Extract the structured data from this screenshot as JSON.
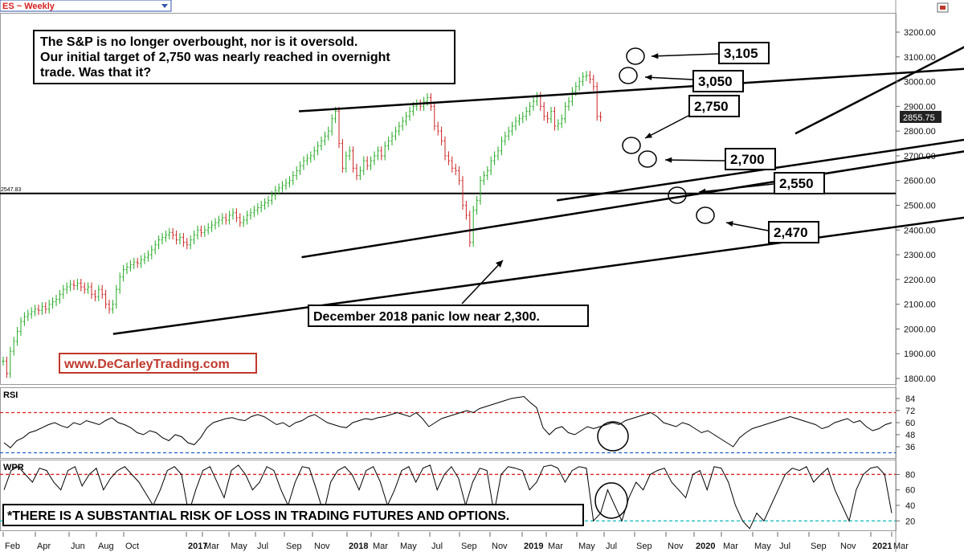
{
  "header": {
    "symbol_title": "ES ~ Weekly",
    "symbol_dropdown_icon": "chevron-down-icon",
    "window_control_icon": "window-restore-icon"
  },
  "annotations": {
    "commentary": [
      "The S&P is no longer overbought, nor is it oversold.",
      " Our initial target of 2,750 was nearly reached  in overnight",
      "trade. Was that it?"
    ],
    "website": "www.DeCarleyTrading.com",
    "panic_low": "December 2018 panic low near 2,300.",
    "disclaimer": "*THERE IS A SUBSTANTIAL RISK OF LOSS IN TRADING FUTURES AND OPTIONS.",
    "level_labels": [
      "3,105",
      "3,050",
      "2,750",
      "2,700",
      "2,550",
      "2,470"
    ]
  },
  "chart_data": [
    {
      "type": "line",
      "panel": "price",
      "y_ticks": [
        "3200.00",
        "3100.00",
        "3000.00",
        "2900.00",
        "2800.00",
        "2700.00",
        "2600.00",
        "2500.00",
        "2400.00",
        "2300.00",
        "2200.00",
        "2100.00",
        "2000.00",
        "1900.00",
        "1800.00"
      ],
      "ylim": [
        1780,
        3250
      ],
      "last_price": "2855.75",
      "horizontal_line": {
        "value": 2547.83,
        "label": "2547.83"
      },
      "x_ticks": [
        "Feb",
        "Apr",
        "Jun",
        "Aug",
        "Oct",
        "2017",
        "Mar",
        "May",
        "Jul",
        "Sep",
        "Nov",
        "2018",
        "Mar",
        "May",
        "Jul",
        "Sep",
        "Nov",
        "2019",
        "Mar",
        "May",
        "Jul",
        "Sep",
        "Nov",
        "2020",
        "Mar",
        "May",
        "Jul",
        "Sep",
        "Nov",
        "2021",
        "Mar"
      ],
      "closes": [
        1870,
        1820,
        1910,
        1950,
        1990,
        2030,
        2050,
        2060,
        2070,
        2080,
        2075,
        2090,
        2080,
        2100,
        2110,
        2120,
        2140,
        2160,
        2170,
        2180,
        2175,
        2185,
        2170,
        2160,
        2170,
        2140,
        2130,
        2160,
        2140,
        2100,
        2080,
        2100,
        2160,
        2210,
        2240,
        2250,
        2260,
        2270,
        2265,
        2280,
        2290,
        2300,
        2320,
        2340,
        2360,
        2370,
        2380,
        2390,
        2380,
        2360,
        2370,
        2350,
        2340,
        2360,
        2380,
        2400,
        2390,
        2400,
        2410,
        2420,
        2430,
        2440,
        2450,
        2440,
        2460,
        2470,
        2450,
        2430,
        2440,
        2460,
        2470,
        2480,
        2490,
        2500,
        2510,
        2520,
        2540,
        2560,
        2570,
        2580,
        2590,
        2600,
        2620,
        2640,
        2660,
        2680,
        2690,
        2700,
        2720,
        2740,
        2760,
        2780,
        2800,
        2850,
        2880,
        2750,
        2650,
        2700,
        2720,
        2650,
        2620,
        2640,
        2680,
        2660,
        2680,
        2700,
        2720,
        2700,
        2740,
        2760,
        2780,
        2800,
        2820,
        2840,
        2860,
        2880,
        2900,
        2910,
        2900,
        2920,
        2935,
        2900,
        2820,
        2800,
        2760,
        2700,
        2680,
        2650,
        2640,
        2600,
        2500,
        2460,
        2350,
        2480,
        2520,
        2600,
        2620,
        2640,
        2680,
        2700,
        2720,
        2760,
        2780,
        2800,
        2820,
        2840,
        2850,
        2860,
        2880,
        2900,
        2920,
        2940,
        2900,
        2860,
        2850,
        2880,
        2820,
        2830,
        2850,
        2900,
        2920,
        2960,
        2980,
        3000,
        3020,
        3025,
        3010,
        2980,
        2860,
        2855.75
      ],
      "trend_lines": [
        {
          "from": [
            2017.12,
            2880
          ],
          "to": [
            2019.57,
            3055
          ]
        },
        {
          "from": [
            2018.05,
            2520
          ],
          "to": [
            2019.85,
            2820
          ]
        },
        {
          "from": [
            2018.91,
            2790
          ],
          "to": [
            2019.65,
            3215
          ]
        },
        {
          "from": [
            2017.13,
            2290
          ],
          "to": [
            2020.2,
            2840
          ]
        },
        {
          "from": [
            2016.45,
            1980
          ],
          "to": [
            2020.53,
            2605
          ]
        }
      ]
    },
    {
      "type": "line",
      "panel": "RSI",
      "label": "RSI",
      "y_ticks": [
        "84",
        "72",
        "60",
        "48",
        "36"
      ],
      "ylim": [
        28,
        92
      ],
      "levels": [
        70,
        30
      ],
      "values": [
        40,
        35,
        42,
        45,
        50,
        52,
        55,
        58,
        60,
        57,
        55,
        60,
        58,
        62,
        60,
        58,
        62,
        65,
        60,
        58,
        55,
        50,
        48,
        52,
        50,
        45,
        42,
        48,
        46,
        40,
        38,
        45,
        55,
        60,
        62,
        64,
        65,
        63,
        62,
        66,
        68,
        66,
        62,
        58,
        60,
        56,
        60,
        62,
        66,
        68,
        64,
        60,
        58,
        56,
        55,
        60,
        62,
        64,
        63,
        65,
        66,
        68,
        70,
        68,
        66,
        70,
        64,
        56,
        60,
        64,
        66,
        68,
        70,
        72,
        70,
        74,
        76,
        78,
        80,
        82,
        84,
        85,
        86,
        80,
        75,
        55,
        48,
        54,
        56,
        50,
        48,
        52,
        56,
        54,
        56,
        58,
        60,
        58,
        62,
        64,
        66,
        68,
        70,
        66,
        60,
        58,
        56,
        60,
        58,
        54,
        50,
        52,
        48,
        44,
        40,
        36,
        45,
        50,
        54,
        56,
        58,
        60,
        62,
        64,
        66,
        64,
        62,
        60,
        58,
        54,
        56,
        60,
        62,
        64,
        60,
        62,
        56,
        52,
        54,
        58,
        60
      ]
    },
    {
      "type": "line",
      "panel": "WPR",
      "label": "WPR",
      "y_ticks": [
        "80",
        "60",
        "40",
        "20"
      ],
      "ylim": [
        12,
        95
      ],
      "levels": [
        80,
        20
      ],
      "values": [
        60,
        85,
        90,
        80,
        70,
        88,
        85,
        70,
        60,
        85,
        90,
        65,
        80,
        88,
        60,
        75,
        85,
        90,
        80,
        70,
        55,
        40,
        60,
        85,
        90,
        80,
        30,
        60,
        85,
        90,
        70,
        50,
        85,
        92,
        80,
        60,
        70,
        90,
        85,
        60,
        40,
        70,
        90,
        88,
        60,
        30,
        70,
        85,
        90,
        80,
        60,
        85,
        90,
        70,
        40,
        60,
        85,
        90,
        70,
        88,
        92,
        60,
        80,
        90,
        75,
        40,
        70,
        88,
        85,
        30,
        80,
        90,
        88,
        85,
        60,
        70,
        90,
        92,
        88,
        70,
        85,
        90,
        88,
        20,
        30,
        60,
        40,
        20,
        50,
        70,
        60,
        80,
        85,
        88,
        70,
        60,
        50,
        80,
        85,
        60,
        90,
        88,
        70,
        40,
        20,
        10,
        30,
        20,
        40,
        60,
        80,
        88,
        85,
        90,
        70,
        80,
        88,
        60,
        40,
        20,
        60,
        80,
        88,
        90,
        80,
        30
      ]
    }
  ]
}
